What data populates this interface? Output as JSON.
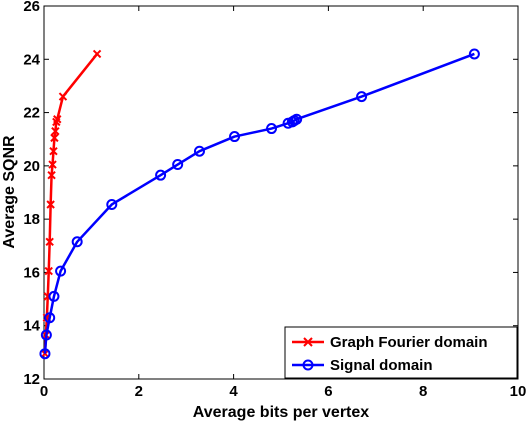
{
  "chart_data": {
    "type": "line",
    "xlabel": "Average bits per vertex",
    "ylabel": "Average SQNR",
    "xlim": [
      0,
      10
    ],
    "ylim": [
      12,
      26
    ],
    "xticks": [
      0,
      2,
      4,
      6,
      8,
      10
    ],
    "yticks": [
      12,
      14,
      16,
      18,
      20,
      22,
      24,
      26
    ],
    "grid": false,
    "legend_position": "bottom-right",
    "series": [
      {
        "name": "Graph Fourier domain",
        "color": "#ff0000",
        "marker": "x",
        "x": [
          0.02,
          0.04,
          0.06,
          0.08,
          0.1,
          0.12,
          0.14,
          0.16,
          0.18,
          0.2,
          0.22,
          0.24,
          0.26,
          0.28,
          0.4,
          1.12
        ],
        "y": [
          12.95,
          13.65,
          14.3,
          15.1,
          16.05,
          17.15,
          18.55,
          19.65,
          20.05,
          20.55,
          21.05,
          21.3,
          21.65,
          21.75,
          22.6,
          24.2
        ]
      },
      {
        "name": "Signal domain",
        "color": "#0000ff",
        "marker": "o",
        "x": [
          0.02,
          0.05,
          0.12,
          0.21,
          0.35,
          0.7,
          1.43,
          2.46,
          2.82,
          3.28,
          4.02,
          4.8,
          5.15,
          5.24,
          5.28,
          5.33,
          6.7,
          9.08
        ],
        "y": [
          12.95,
          13.65,
          14.3,
          15.1,
          16.05,
          17.15,
          18.55,
          19.65,
          20.05,
          20.55,
          21.1,
          21.4,
          21.6,
          21.65,
          21.7,
          21.75,
          22.6,
          24.2
        ]
      }
    ]
  }
}
